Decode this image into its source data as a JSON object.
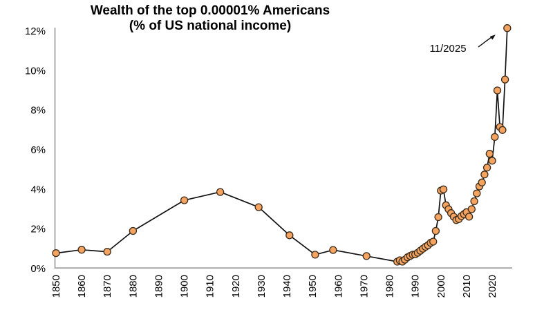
{
  "chart_data": {
    "type": "line",
    "title": "Wealth of the top 0.00001% Americans",
    "subtitle": "(% of US national income)",
    "xlabel": "",
    "ylabel": "",
    "xlim": [
      1850,
      2028
    ],
    "ylim": [
      0,
      12
    ],
    "grid": false,
    "legend": "none",
    "x_ticks": [
      1850,
      1860,
      1870,
      1880,
      1890,
      1900,
      1910,
      1920,
      1930,
      1940,
      1950,
      1960,
      1970,
      1980,
      1990,
      2000,
      2010,
      2020
    ],
    "y_ticks": [
      0,
      2,
      4,
      6,
      8,
      10,
      12
    ],
    "y_tick_suffix": "%",
    "points": [
      [
        1850,
        0.78
      ],
      [
        1860,
        0.95
      ],
      [
        1870,
        0.85
      ],
      [
        1880,
        1.9
      ],
      [
        1900,
        3.45
      ],
      [
        1914,
        3.87
      ],
      [
        1929,
        3.1
      ],
      [
        1941,
        1.68
      ],
      [
        1951,
        0.7
      ],
      [
        1958,
        0.94
      ],
      [
        1971,
        0.63
      ],
      [
        1983,
        0.35
      ],
      [
        1984,
        0.42
      ],
      [
        1985,
        0.35
      ],
      [
        1986,
        0.45
      ],
      [
        1987,
        0.57
      ],
      [
        1988,
        0.64
      ],
      [
        1989,
        0.7
      ],
      [
        1990,
        0.72
      ],
      [
        1991,
        0.8
      ],
      [
        1992,
        0.9
      ],
      [
        1993,
        1.0
      ],
      [
        1994,
        1.1
      ],
      [
        1995,
        1.18
      ],
      [
        1996,
        1.3
      ],
      [
        1997,
        1.36
      ],
      [
        1998,
        1.9
      ],
      [
        1999,
        2.6
      ],
      [
        2000,
        3.94
      ],
      [
        2001,
        4.0
      ],
      [
        2002,
        3.2
      ],
      [
        2003,
        3.0
      ],
      [
        2004,
        2.8
      ],
      [
        2005,
        2.62
      ],
      [
        2006,
        2.45
      ],
      [
        2007,
        2.5
      ],
      [
        2008,
        2.65
      ],
      [
        2009,
        2.75
      ],
      [
        2010,
        2.85
      ],
      [
        2011,
        2.62
      ],
      [
        2012,
        3.0
      ],
      [
        2013,
        3.4
      ],
      [
        2014,
        3.8
      ],
      [
        2015,
        4.15
      ],
      [
        2016,
        4.35
      ],
      [
        2017,
        4.75
      ],
      [
        2018,
        5.1
      ],
      [
        2019,
        5.8
      ],
      [
        2020,
        5.45
      ],
      [
        2021,
        6.65
      ],
      [
        2022,
        9.0
      ],
      [
        2023,
        7.15
      ],
      [
        2024,
        7.0
      ],
      [
        2025,
        9.55
      ],
      [
        2025.87,
        12.15
      ]
    ],
    "annotation": {
      "text": "11/2025",
      "points_to": [
        2025.87,
        12.15
      ]
    },
    "colors": {
      "marker_fill": "#F4A460",
      "marker_edge": "#3a2a1a",
      "line": "#111111",
      "axis": "#a3a3a3",
      "text": "#000000"
    }
  }
}
